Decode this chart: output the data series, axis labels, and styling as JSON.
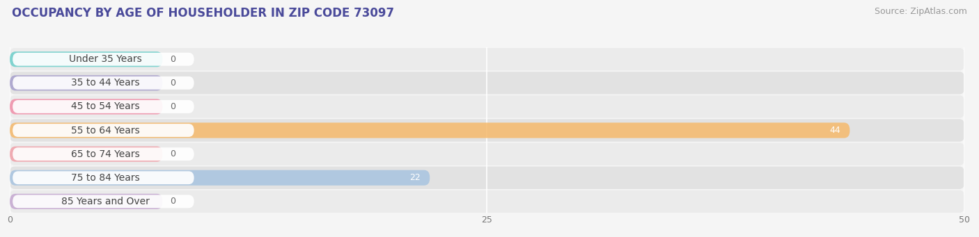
{
  "title": "OCCUPANCY BY AGE OF HOUSEHOLDER IN ZIP CODE 73097",
  "source": "Source: ZipAtlas.com",
  "categories": [
    "Under 35 Years",
    "35 to 44 Years",
    "45 to 54 Years",
    "55 to 64 Years",
    "65 to 74 Years",
    "75 to 84 Years",
    "85 Years and Over"
  ],
  "values": [
    0,
    0,
    0,
    44,
    0,
    22,
    0
  ],
  "bar_colors": [
    "#6ecfcb",
    "#a79fcc",
    "#f08fa8",
    "#f5b96b",
    "#f0a0a8",
    "#a8c4e0",
    "#c5a8d0"
  ],
  "row_bg_colors": [
    "#eeeeee",
    "#e8e8e8"
  ],
  "xlim": [
    0,
    50
  ],
  "xticks": [
    0,
    25,
    50
  ],
  "background_color": "#f5f5f5",
  "title_fontsize": 12,
  "source_fontsize": 9,
  "label_fontsize": 10,
  "value_fontsize": 9,
  "title_color": "#4a4a9a",
  "source_color": "#999999"
}
